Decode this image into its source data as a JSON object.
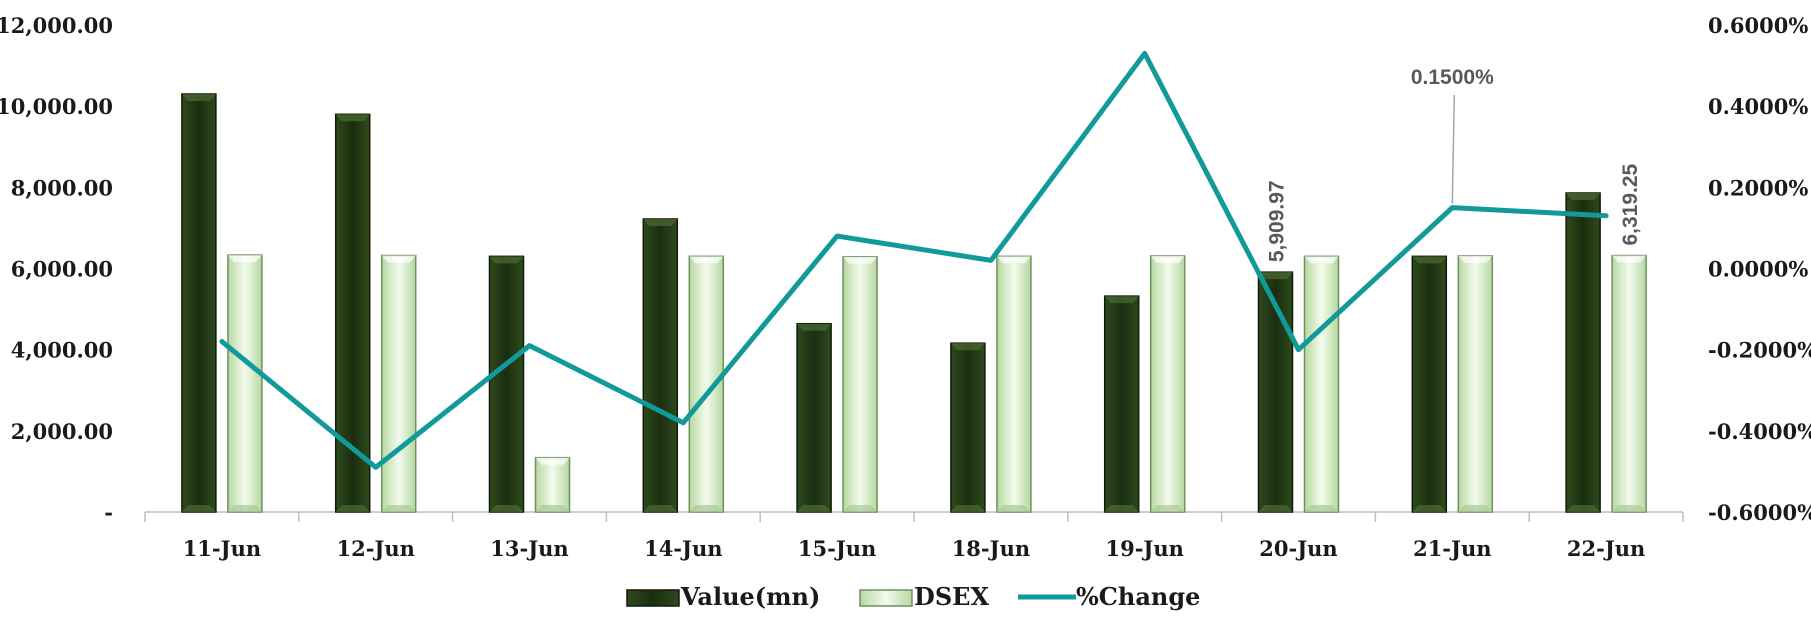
{
  "chart_data": {
    "type": "bar",
    "categories": [
      "11-Jun",
      "12-Jun",
      "13-Jun",
      "14-Jun",
      "15-Jun",
      "18-Jun",
      "19-Jun",
      "20-Jun",
      "21-Jun",
      "22-Jun"
    ],
    "series": [
      {
        "name": "Value(mn)",
        "type": "bar",
        "axis": "left",
        "color": "#1e3312",
        "values": [
          10300,
          9800,
          6300,
          7220,
          4640,
          4160,
          5320,
          5909.97,
          6300,
          7860
        ]
      },
      {
        "name": "DSEX",
        "type": "bar",
        "axis": "left",
        "color": "#d8efc8",
        "values": [
          6330,
          6320,
          1340,
          6300,
          6290,
          6300,
          6310,
          6300,
          6310,
          6319.25
        ]
      },
      {
        "name": "%Change",
        "type": "line",
        "axis": "right",
        "color": "#12999a",
        "values": [
          -0.18,
          -0.49,
          -0.19,
          -0.38,
          0.08,
          0.02,
          0.53,
          -0.2,
          0.15,
          0.13
        ]
      }
    ],
    "y_left": {
      "min": 0,
      "max": 12000,
      "ticks": [
        {
          "value": 0,
          "label": "-"
        },
        {
          "value": 2000,
          "label": "2,000.00"
        },
        {
          "value": 4000,
          "label": "4,000.00"
        },
        {
          "value": 6000,
          "label": "6,000.00"
        },
        {
          "value": 8000,
          "label": "8,000.00"
        },
        {
          "value": 10000,
          "label": "10,000.00"
        },
        {
          "value": 12000,
          "label": "12,000.00"
        }
      ]
    },
    "y_right": {
      "min": -0.6,
      "max": 0.6,
      "ticks": [
        {
          "value": -0.6,
          "label": "-0.6000%"
        },
        {
          "value": -0.4,
          "label": "-0.4000%"
        },
        {
          "value": -0.2,
          "label": "-0.2000%"
        },
        {
          "value": 0,
          "label": "0.0000%"
        },
        {
          "value": 0.2,
          "label": "0.2000%"
        },
        {
          "value": 0.4,
          "label": "0.4000%"
        },
        {
          "value": 0.6,
          "label": "0.6000%"
        }
      ]
    },
    "data_labels": [
      {
        "series": "Value(mn)",
        "category": "20-Jun",
        "text": "5,909.97"
      },
      {
        "series": "DSEX",
        "category": "22-Jun",
        "text": "6,319.25"
      },
      {
        "series": "%Change",
        "category": "21-Jun",
        "text": "0.1500%"
      }
    ],
    "legend": {
      "position": "bottom"
    },
    "grid": false
  }
}
